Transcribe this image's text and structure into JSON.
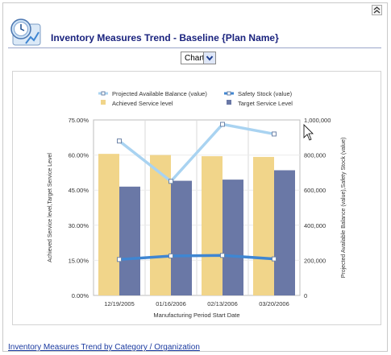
{
  "header": {
    "title": "Inventory Measures Trend - Baseline {Plan Name}"
  },
  "view_select": {
    "value": "Chart"
  },
  "footer": {
    "link": "Inventory Measures Trend by Category / Organization"
  },
  "colors": {
    "achieved": "#f1d58a",
    "target": "#6a78a6",
    "projected": "#a9d3f1",
    "safety": "#3f86d2",
    "title": "#1a237e"
  },
  "chart_data": {
    "type": "bar",
    "categories": [
      "12/19/2005",
      "01/16/2006",
      "02/13/2006",
      "03/20/2006"
    ],
    "series": [
      {
        "name": "Achieved Service level",
        "type": "bar",
        "axis": "left",
        "values": [
          60.5,
          60.0,
          59.5,
          59.2
        ]
      },
      {
        "name": "Target Service Level",
        "type": "bar",
        "axis": "left",
        "values": [
          46.5,
          49.0,
          49.5,
          53.5
        ]
      },
      {
        "name": "Projected Available Balance (value)",
        "type": "line",
        "axis": "right",
        "values": [
          880000,
          650000,
          975000,
          920000
        ]
      },
      {
        "name": "Safety Stock (value)",
        "type": "line",
        "axis": "right",
        "values": [
          205000,
          225000,
          228000,
          208000
        ]
      }
    ],
    "legend": [
      "Projected Available Balance (value)",
      "Safety Stock (value)",
      "Achieved Service level",
      "Target Service Level"
    ],
    "xlabel": "Manufacturing Period Start Date",
    "ylabel": "Achieved Service level,Target Service Level",
    "y2label": "Projected Available Balance (value),Safety Stock (value)",
    "ylim": [
      0,
      75
    ],
    "y2lim": [
      0,
      1000000
    ],
    "yticks": [
      "0.00%",
      "15.00%",
      "30.00%",
      "45.00%",
      "60.00%",
      "75.00%"
    ],
    "y2ticks": [
      "0",
      "200,000",
      "400,000",
      "600,000",
      "800,000",
      "1,000,000"
    ],
    "legend_position": "top",
    "grid": true
  }
}
